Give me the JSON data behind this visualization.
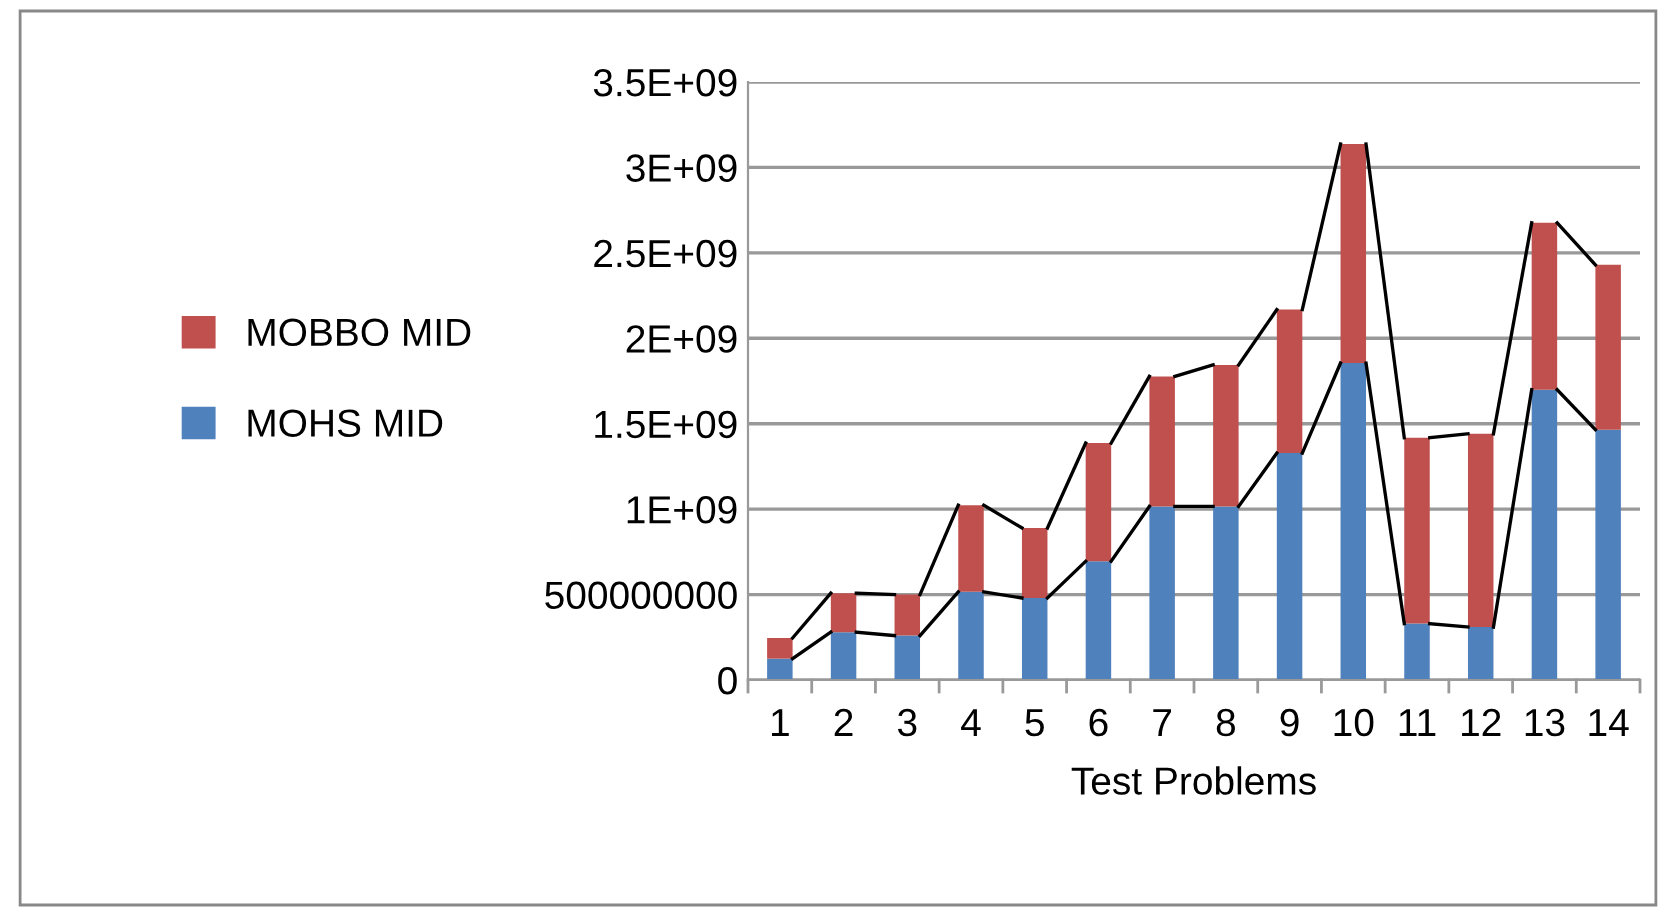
{
  "chart_data": {
    "type": "bar",
    "stacked": true,
    "xlabel": "Test Problems",
    "categories": [
      "1",
      "2",
      "3",
      "4",
      "5",
      "6",
      "7",
      "8",
      "9",
      "10",
      "11",
      "12",
      "13",
      "14"
    ],
    "series": [
      {
        "name": "MOHS MID",
        "color": "#4f81bd",
        "values": [
          125000000,
          280000000,
          260000000,
          516000000,
          480000000,
          695000000,
          1016000000,
          1016000000,
          1328000000,
          1855000000,
          330000000,
          310000000,
          1699000000,
          1465000000
        ]
      },
      {
        "name": "MOBBO MID",
        "color": "#c0504d",
        "values": [
          121000000,
          228000000,
          240000000,
          507000000,
          410000000,
          692000000,
          761000000,
          828000000,
          840000000,
          1282000000,
          1088000000,
          1131000000,
          977000000,
          965000000
        ]
      }
    ],
    "ylim": [
      0,
      3500000000
    ],
    "yticks": [
      0,
      500000000,
      {
        "value": 1000000000,
        "label": "1E+09"
      },
      {
        "value": 1500000000,
        "label": "1.5E+09"
      },
      {
        "value": 2000000000,
        "label": "2E+09"
      },
      {
        "value": 2500000000,
        "label": "2.5E+09"
      },
      {
        "value": 3000000000,
        "label": "3E+09"
      },
      {
        "value": 3500000000,
        "label": "3.5E+09"
      }
    ],
    "grid": "y",
    "legend": "left"
  }
}
